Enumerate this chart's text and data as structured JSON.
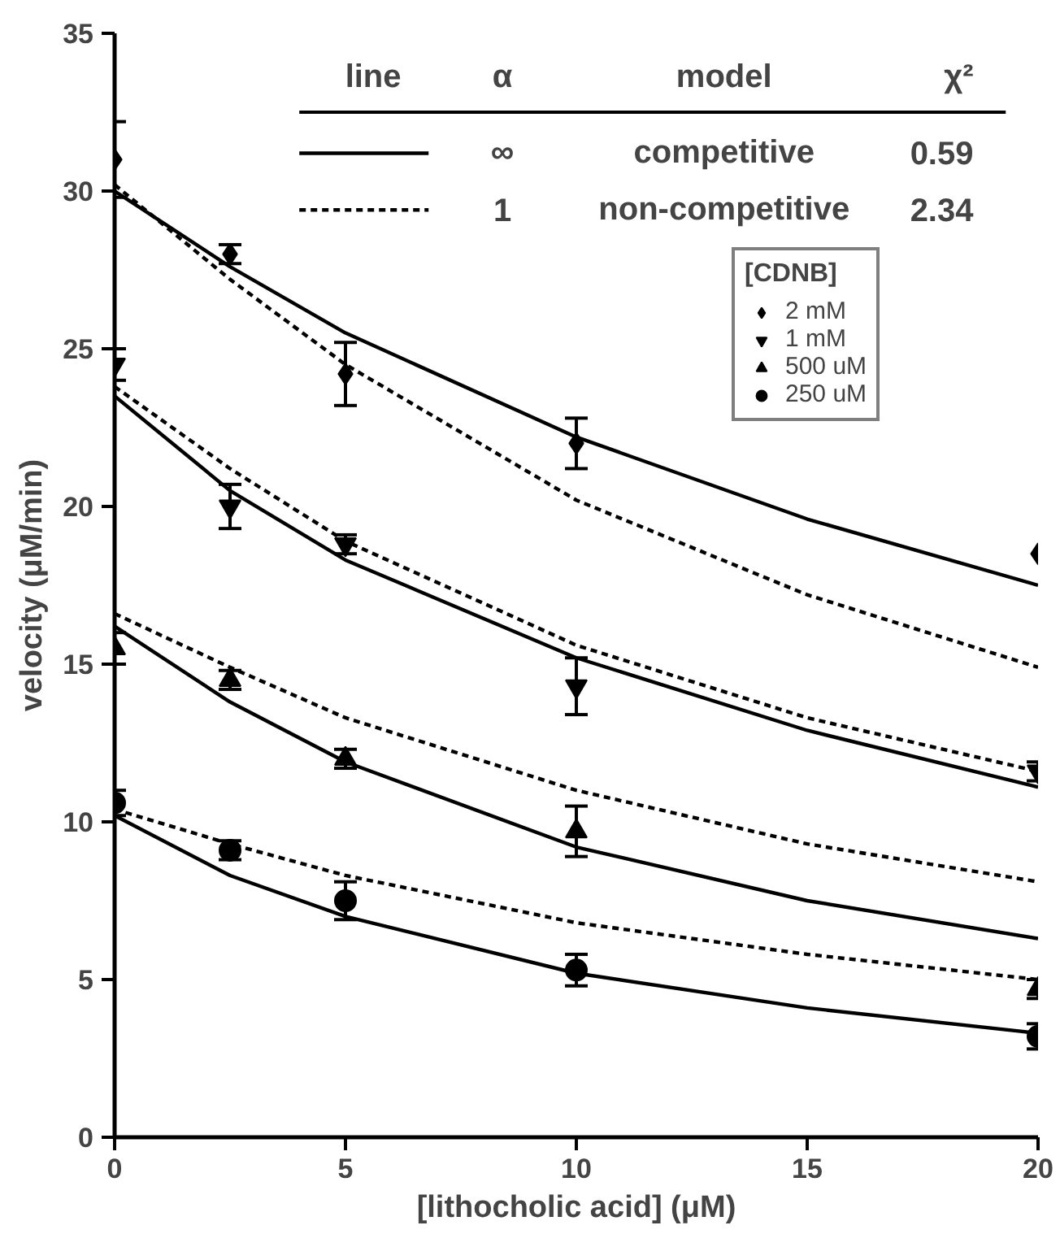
{
  "chart_data": {
    "type": "scatter",
    "xlabel": "[lithocholic acid] (μM)",
    "ylabel": "velocity (μM/min)",
    "xlim": [
      0,
      20
    ],
    "ylim": [
      0,
      35
    ],
    "xticks": [
      0,
      5,
      10,
      15,
      20
    ],
    "yticks": [
      0,
      5,
      10,
      15,
      20,
      25,
      30,
      35
    ],
    "grid": false,
    "legend": "top right",
    "legend_title": "[CDNB]",
    "annotations": [
      "line",
      "α",
      "model",
      "χ²",
      "∞",
      "competitive",
      "0.59",
      "1",
      "non-competitive",
      "2.34"
    ],
    "x": [
      0,
      2.5,
      5,
      10,
      20
    ],
    "series": [
      {
        "name": "2 mM",
        "color": "#000000",
        "marker": "diamond",
        "values": [
          31,
          28,
          24.2,
          22,
          18.5
        ],
        "errors": [
          1.2,
          0.3,
          1,
          0.8,
          null
        ]
      },
      {
        "name": "1 mM",
        "color": "#000000",
        "values": [
          24.5,
          20,
          18.8,
          14.3,
          11.6
        ],
        "errors": [
          0.5,
          0.7,
          0.3,
          0.9,
          0.3
        ]
      },
      {
        "name": "500 uM",
        "color": "#000000",
        "marker": "triangle",
        "values": [
          15.5,
          14.5,
          12,
          9.7,
          4.7
        ],
        "errors": [
          0.5,
          0.3,
          0.3,
          0.8,
          0.3
        ]
      },
      {
        "name": "250 uM",
        "color": "#000000",
        "marker": "circle",
        "values": [
          10.6,
          9.1,
          7.5,
          5.3,
          3.2
        ],
        "errors": [
          0.4,
          0.3,
          0.6,
          0.5,
          0.4
        ]
      },
      {
        "type": "line",
        "color": "#000000",
        "line_style": "solid",
        "x": [
          0,
          2.5,
          5,
          10,
          15,
          20
        ],
        "values": [
          30,
          27.6,
          25.5,
          22.2,
          19.6,
          17.5
        ]
      },
      {
        "type": "line",
        "color": "#000000",
        "line_style": "solid",
        "x": [
          0,
          2.5,
          5,
          10,
          15,
          20
        ],
        "values": [
          23.5,
          20.5,
          18.3,
          15.2,
          12.9,
          11.1
        ]
      },
      {
        "type": "line",
        "color": "#000000",
        "line_style": "solid",
        "x": [
          0,
          2.5,
          5,
          10,
          15,
          20
        ],
        "values": [
          16.2,
          13.8,
          11.9,
          9.2,
          7.5,
          6.3
        ]
      },
      {
        "type": "line",
        "color": "#000000",
        "line_style": "solid",
        "x": [
          0,
          2.5,
          5,
          10,
          15,
          20
        ],
        "values": [
          10.2,
          8.3,
          7,
          5.2,
          4.1,
          3.3
        ]
      },
      {
        "type": "line",
        "color": "#000000",
        "line_style": "dashed",
        "x": [
          0,
          2.5,
          5,
          10,
          15,
          20
        ],
        "values": [
          30.2,
          27.2,
          24.5,
          20.2,
          17.2,
          14.9
        ]
      },
      {
        "type": "line",
        "color": "#000000",
        "line_style": "dashed",
        "x": [
          0,
          2.5,
          5,
          10,
          15,
          20
        ],
        "values": [
          23.8,
          21.2,
          18.9,
          15.6,
          13.3,
          11.6
        ]
      },
      {
        "type": "line",
        "color": "#000000",
        "line_style": "dashed",
        "x": [
          0,
          2.5,
          5,
          10,
          15,
          20
        ],
        "values": [
          16.6,
          14.9,
          13.3,
          11,
          9.3,
          8.1
        ]
      },
      {
        "type": "line",
        "color": "#000000",
        "line_style": "dashed",
        "x": [
          0,
          2.5,
          5,
          10,
          15,
          20
        ],
        "values": [
          10.4,
          9.3,
          8.3,
          6.8,
          5.8,
          5.0
        ]
      }
    ]
  }
}
